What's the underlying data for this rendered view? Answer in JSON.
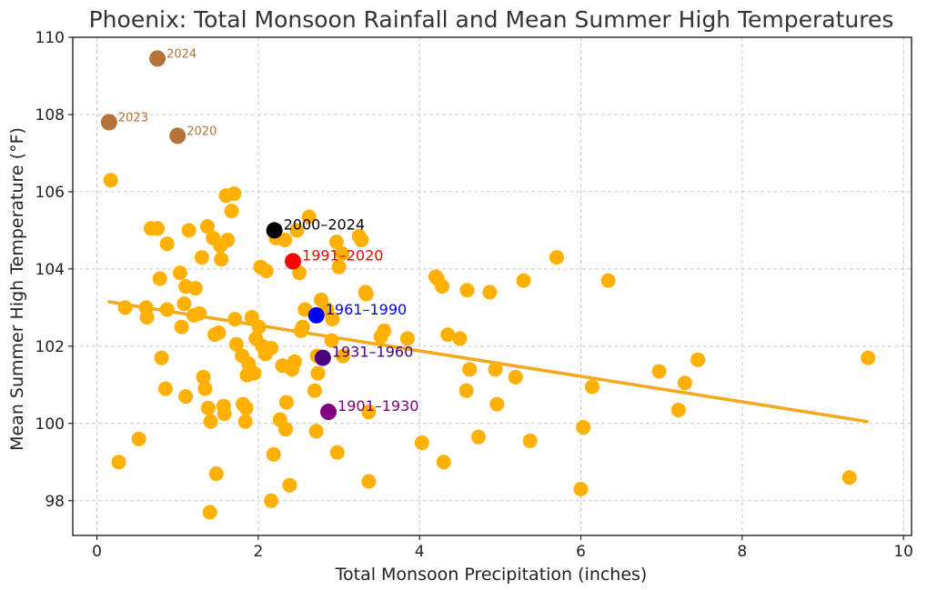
{
  "chart_data": {
    "type": "scatter",
    "title": "Phoenix: Total Monsoon Rainfall and Mean Summer High Temperatures",
    "xlabel": "Total Monsoon Precipitation (inches)",
    "ylabel": "Mean Summer High Temperature (°F)",
    "xlim": [
      -0.3,
      10.1
    ],
    "ylim": [
      97.1,
      110.0
    ],
    "xticks": [
      0,
      2,
      4,
      6,
      8,
      10
    ],
    "yticks": [
      98,
      100,
      102,
      104,
      106,
      108,
      110
    ],
    "grid": true,
    "colors": {
      "points": "#FFB000",
      "trend": "#F5A81C",
      "highlight_years": "#B5733A"
    },
    "trend_line": {
      "x": [
        0.15,
        9.55
      ],
      "y": [
        103.15,
        100.05
      ]
    },
    "points": [
      [
        0.17,
        106.3
      ],
      [
        0.27,
        99.0
      ],
      [
        0.35,
        103.0
      ],
      [
        0.52,
        99.6
      ],
      [
        0.61,
        103.0
      ],
      [
        0.62,
        102.75
      ],
      [
        0.67,
        105.05
      ],
      [
        0.75,
        105.05
      ],
      [
        0.78,
        103.75
      ],
      [
        0.8,
        101.7
      ],
      [
        0.85,
        100.9
      ],
      [
        0.87,
        102.95
      ],
      [
        0.87,
        104.65
      ],
      [
        1.03,
        103.9
      ],
      [
        1.05,
        102.5
      ],
      [
        1.08,
        103.1
      ],
      [
        1.1,
        103.55
      ],
      [
        1.1,
        100.7
      ],
      [
        1.14,
        105.0
      ],
      [
        1.2,
        102.8
      ],
      [
        1.22,
        103.5
      ],
      [
        1.27,
        102.85
      ],
      [
        1.3,
        104.3
      ],
      [
        1.32,
        101.2
      ],
      [
        1.34,
        100.9
      ],
      [
        1.37,
        105.1
      ],
      [
        1.38,
        100.4
      ],
      [
        1.4,
        97.7
      ],
      [
        1.41,
        100.05
      ],
      [
        1.44,
        104.8
      ],
      [
        1.46,
        102.3
      ],
      [
        1.48,
        98.7
      ],
      [
        1.51,
        102.35
      ],
      [
        1.53,
        104.6
      ],
      [
        1.54,
        104.25
      ],
      [
        1.57,
        100.45
      ],
      [
        1.58,
        100.25
      ],
      [
        1.6,
        105.9
      ],
      [
        1.62,
        104.75
      ],
      [
        1.67,
        105.5
      ],
      [
        1.7,
        105.95
      ],
      [
        1.71,
        102.7
      ],
      [
        1.73,
        102.05
      ],
      [
        1.8,
        101.75
      ],
      [
        1.81,
        100.5
      ],
      [
        1.84,
        100.05
      ],
      [
        1.85,
        100.4
      ],
      [
        1.86,
        101.25
      ],
      [
        1.88,
        101.55
      ],
      [
        1.92,
        102.75
      ],
      [
        1.95,
        101.3
      ],
      [
        1.97,
        102.2
      ],
      [
        2.01,
        102.5
      ],
      [
        2.03,
        104.05
      ],
      [
        2.05,
        102.0
      ],
      [
        2.09,
        101.8
      ],
      [
        2.1,
        103.95
      ],
      [
        2.16,
        98.0
      ],
      [
        2.16,
        101.95
      ],
      [
        2.19,
        99.2
      ],
      [
        2.22,
        104.8
      ],
      [
        2.27,
        100.1
      ],
      [
        2.3,
        101.5
      ],
      [
        2.33,
        104.75
      ],
      [
        2.34,
        99.85
      ],
      [
        2.35,
        100.55
      ],
      [
        2.39,
        98.4
      ],
      [
        2.42,
        101.4
      ],
      [
        2.45,
        101.6
      ],
      [
        2.48,
        105.0
      ],
      [
        2.51,
        103.9
      ],
      [
        2.53,
        102.4
      ],
      [
        2.55,
        102.5
      ],
      [
        2.58,
        102.95
      ],
      [
        2.63,
        105.35
      ],
      [
        2.7,
        100.85
      ],
      [
        2.72,
        99.8
      ],
      [
        2.73,
        101.75
      ],
      [
        2.74,
        101.3
      ],
      [
        2.78,
        103.2
      ],
      [
        2.85,
        102.95
      ],
      [
        2.91,
        102.15
      ],
      [
        2.92,
        102.7
      ],
      [
        2.97,
        104.7
      ],
      [
        2.98,
        99.25
      ],
      [
        3.0,
        104.05
      ],
      [
        3.04,
        104.4
      ],
      [
        3.05,
        101.75
      ],
      [
        3.25,
        104.85
      ],
      [
        3.28,
        104.75
      ],
      [
        3.33,
        103.4
      ],
      [
        3.34,
        103.35
      ],
      [
        3.37,
        100.3
      ],
      [
        3.37,
        98.5
      ],
      [
        3.52,
        102.25
      ],
      [
        3.56,
        102.4
      ],
      [
        3.85,
        102.2
      ],
      [
        4.03,
        99.5
      ],
      [
        4.2,
        103.8
      ],
      [
        4.22,
        103.75
      ],
      [
        4.28,
        103.55
      ],
      [
        4.3,
        99.0
      ],
      [
        4.35,
        102.3
      ],
      [
        4.5,
        102.2
      ],
      [
        4.58,
        100.85
      ],
      [
        4.59,
        103.45
      ],
      [
        4.62,
        101.4
      ],
      [
        4.73,
        99.65
      ],
      [
        4.87,
        103.4
      ],
      [
        4.94,
        101.4
      ],
      [
        4.96,
        100.5
      ],
      [
        5.19,
        101.2
      ],
      [
        5.29,
        103.7
      ],
      [
        5.37,
        99.55
      ],
      [
        5.7,
        104.3
      ],
      [
        6.0,
        98.3
      ],
      [
        6.03,
        99.9
      ],
      [
        6.14,
        100.95
      ],
      [
        6.34,
        103.7
      ],
      [
        6.97,
        101.35
      ],
      [
        7.21,
        100.35
      ],
      [
        7.29,
        101.05
      ],
      [
        7.45,
        101.65
      ],
      [
        9.33,
        98.6
      ],
      [
        9.56,
        101.7
      ]
    ],
    "highlight_years": [
      {
        "label": "2024",
        "x": 0.75,
        "y": 109.45
      },
      {
        "label": "2023",
        "x": 0.15,
        "y": 107.8
      },
      {
        "label": "2020",
        "x": 1.0,
        "y": 107.45
      }
    ],
    "era_means": [
      {
        "label": "2000–2024",
        "x": 2.2,
        "y": 105.0,
        "color": "#000000"
      },
      {
        "label": "1991–2020",
        "x": 2.43,
        "y": 104.2,
        "color": "#FF0000"
      },
      {
        "label": "1961–1990",
        "x": 2.72,
        "y": 102.8,
        "color": "#0000FF"
      },
      {
        "label": "1931–1960",
        "x": 2.8,
        "y": 101.7,
        "color": "#4B0082"
      },
      {
        "label": "1901–1930",
        "x": 2.87,
        "y": 100.3,
        "color": "#800080"
      }
    ]
  }
}
